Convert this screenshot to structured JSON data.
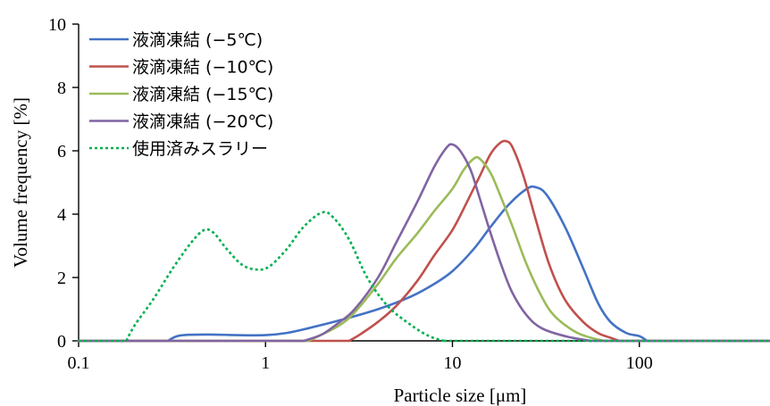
{
  "chart_data": {
    "type": "line",
    "xscale": "log",
    "xlim": [
      0.1,
      500
    ],
    "ylim": [
      0,
      10
    ],
    "xticks": [
      0.1,
      1,
      10,
      100
    ],
    "xtick_labels": [
      "0.1",
      "1",
      "10",
      "100"
    ],
    "yticks": [
      0,
      2,
      4,
      6,
      8,
      10
    ],
    "ytick_labels": [
      "0",
      "2",
      "4",
      "6",
      "8",
      "10"
    ],
    "xlabel": "Particle size [μm]",
    "ylabel": "Volume frequency [%]",
    "grid": false,
    "legend_position": "top-left",
    "series": [
      {
        "name": "液滴凍結 (−5℃)",
        "color": "#4472c4",
        "style": "solid",
        "points": [
          [
            0.3,
            0
          ],
          [
            0.35,
            0.17
          ],
          [
            0.5,
            0.2
          ],
          [
            0.7,
            0.18
          ],
          [
            1.0,
            0.18
          ],
          [
            1.3,
            0.25
          ],
          [
            1.7,
            0.4
          ],
          [
            2.5,
            0.65
          ],
          [
            4,
            1.0
          ],
          [
            6,
            1.4
          ],
          [
            8,
            1.8
          ],
          [
            10,
            2.2
          ],
          [
            13,
            2.9
          ],
          [
            16,
            3.6
          ],
          [
            20,
            4.3
          ],
          [
            25,
            4.8
          ],
          [
            28,
            4.85
          ],
          [
            32,
            4.6
          ],
          [
            40,
            3.6
          ],
          [
            50,
            2.3
          ],
          [
            60,
            1.2
          ],
          [
            70,
            0.6
          ],
          [
            85,
            0.25
          ],
          [
            100,
            0.15
          ],
          [
            110,
            0
          ]
        ]
      },
      {
        "name": "液滴凍結 (−10℃)",
        "color": "#c0504d",
        "style": "solid",
        "points": [
          [
            2.8,
            0
          ],
          [
            3.2,
            0.2
          ],
          [
            4,
            0.6
          ],
          [
            5,
            1.1
          ],
          [
            6.5,
            1.9
          ],
          [
            8,
            2.7
          ],
          [
            10,
            3.5
          ],
          [
            12,
            4.4
          ],
          [
            14,
            5.2
          ],
          [
            16,
            5.9
          ],
          [
            18,
            6.25
          ],
          [
            19.5,
            6.3
          ],
          [
            21,
            6.1
          ],
          [
            24,
            5.2
          ],
          [
            28,
            3.8
          ],
          [
            33,
            2.4
          ],
          [
            40,
            1.3
          ],
          [
            50,
            0.6
          ],
          [
            60,
            0.25
          ],
          [
            70,
            0.1
          ],
          [
            78,
            0
          ]
        ]
      },
      {
        "name": "液滴凍結 (−15℃)",
        "color": "#9bbb59",
        "style": "solid",
        "points": [
          [
            1.7,
            0
          ],
          [
            2,
            0.2
          ],
          [
            2.5,
            0.5
          ],
          [
            3,
            0.9
          ],
          [
            4,
            1.8
          ],
          [
            5,
            2.6
          ],
          [
            6.5,
            3.4
          ],
          [
            8,
            4.1
          ],
          [
            10,
            4.8
          ],
          [
            11.5,
            5.4
          ],
          [
            13,
            5.75
          ],
          [
            14,
            5.75
          ],
          [
            16,
            5.3
          ],
          [
            18,
            4.6
          ],
          [
            21,
            3.6
          ],
          [
            25,
            2.4
          ],
          [
            30,
            1.4
          ],
          [
            35,
            0.8
          ],
          [
            45,
            0.3
          ],
          [
            55,
            0.1
          ],
          [
            65,
            0
          ]
        ]
      },
      {
        "name": "液滴凍結 (−20℃)",
        "color": "#8064a2",
        "style": "solid",
        "points": [
          [
            1.6,
            0
          ],
          [
            2,
            0.2
          ],
          [
            2.5,
            0.6
          ],
          [
            3,
            1.0
          ],
          [
            4,
            2.0
          ],
          [
            5,
            3.1
          ],
          [
            6.5,
            4.4
          ],
          [
            8,
            5.5
          ],
          [
            9.3,
            6.1
          ],
          [
            10,
            6.2
          ],
          [
            11,
            6.0
          ],
          [
            12.5,
            5.4
          ],
          [
            14,
            4.5
          ],
          [
            16,
            3.4
          ],
          [
            18.5,
            2.3
          ],
          [
            21,
            1.5
          ],
          [
            25,
            0.8
          ],
          [
            30,
            0.4
          ],
          [
            40,
            0.15
          ],
          [
            55,
            0
          ]
        ]
      },
      {
        "name": "使用済みスラリー",
        "color": "#00b050",
        "style": "dotted",
        "points": [
          [
            0.18,
            0
          ],
          [
            0.2,
            0.5
          ],
          [
            0.25,
            1.3
          ],
          [
            0.32,
            2.3
          ],
          [
            0.4,
            3.1
          ],
          [
            0.47,
            3.5
          ],
          [
            0.53,
            3.4
          ],
          [
            0.62,
            2.9
          ],
          [
            0.75,
            2.4
          ],
          [
            0.9,
            2.25
          ],
          [
            1.05,
            2.35
          ],
          [
            1.3,
            2.9
          ],
          [
            1.6,
            3.6
          ],
          [
            2.0,
            4.05
          ],
          [
            2.3,
            3.9
          ],
          [
            2.8,
            3.2
          ],
          [
            3.5,
            2.0
          ],
          [
            4.5,
            1.1
          ],
          [
            6,
            0.5
          ],
          [
            7.5,
            0.15
          ],
          [
            9,
            0
          ]
        ]
      }
    ]
  }
}
